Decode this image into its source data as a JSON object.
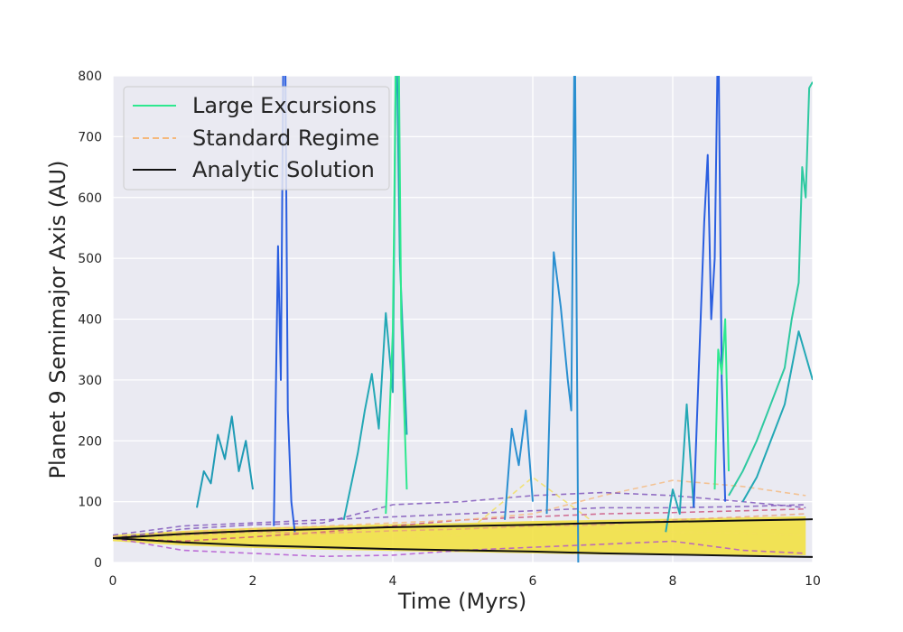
{
  "chart_data": {
    "type": "line",
    "xlabel": "Time (Myrs)",
    "ylabel": "Planet 9 Semimajor Axis (AU)",
    "xlim": [
      0,
      10
    ],
    "ylim": [
      0,
      800
    ],
    "xticks": [
      0,
      2,
      4,
      6,
      8,
      10
    ],
    "yticks": [
      0,
      100,
      200,
      300,
      400,
      500,
      600,
      700,
      800
    ],
    "xtick_labels": [
      "0",
      "2",
      "4",
      "6",
      "8",
      "10"
    ],
    "ytick_labels": [
      "0",
      "100",
      "200",
      "300",
      "400",
      "500",
      "600",
      "700",
      "800"
    ],
    "grid": true,
    "background": "#eaeaf2",
    "legend": {
      "placement": "top-left",
      "entries": [
        {
          "label": "Large Excursions",
          "color": "#2ee88f",
          "style": "solid"
        },
        {
          "label": "Standard Regime",
          "color": "#f5b87c",
          "style": "dashed"
        },
        {
          "label": "Analytic Solution",
          "color": "#111111",
          "style": "solid"
        }
      ]
    },
    "series": [
      {
        "name": "Large Excursions",
        "style": "solid",
        "color": "#2ee88f",
        "paths": [
          {
            "color": "#1f9bb5",
            "x": [
              1.2,
              1.3,
              1.4,
              1.5,
              1.6,
              1.7,
              1.8,
              1.9,
              2.0
            ],
            "y": [
              90,
              150,
              130,
              210,
              170,
              240,
              150,
              200,
              120
            ]
          },
          {
            "color": "#2a5ee0",
            "x": [
              2.3,
              2.36,
              2.4,
              2.44,
              2.46,
              2.5,
              2.55,
              2.6
            ],
            "y": [
              60,
              520,
              300,
              900,
              900,
              250,
              100,
              50
            ]
          },
          {
            "color": "#23a8b5",
            "x": [
              3.3,
              3.5,
              3.6,
              3.7,
              3.8,
              3.9,
              4.0,
              4.05,
              4.1,
              4.2
            ],
            "y": [
              70,
              180,
              250,
              310,
              220,
              410,
              280,
              900,
              500,
              210
            ]
          },
          {
            "color": "#2ee88f",
            "x": [
              3.9,
              4.0,
              4.05,
              4.08,
              4.12,
              4.2
            ],
            "y": [
              80,
              380,
              900,
              900,
              400,
              120
            ]
          },
          {
            "color": "#2a8fd0",
            "x": [
              5.6,
              5.7,
              5.8,
              5.9,
              6.0
            ],
            "y": [
              70,
              220,
              160,
              250,
              100
            ]
          },
          {
            "color": "#2a8fd0",
            "x": [
              6.2,
              6.3,
              6.4,
              6.5,
              6.55,
              6.6,
              6.65
            ],
            "y": [
              80,
              510,
              420,
              300,
              250,
              900,
              0
            ]
          },
          {
            "color": "#23a8b5",
            "x": [
              7.9,
              8.0,
              8.1,
              8.2,
              8.3
            ],
            "y": [
              50,
              120,
              80,
              260,
              90
            ]
          },
          {
            "color": "#2a5ee0",
            "x": [
              8.3,
              8.45,
              8.5,
              8.55,
              8.6,
              8.65,
              8.7,
              8.75
            ],
            "y": [
              90,
              560,
              670,
              400,
              500,
              900,
              300,
              100
            ]
          },
          {
            "color": "#2ee88f",
            "x": [
              8.6,
              8.65,
              8.7,
              8.75,
              8.8
            ],
            "y": [
              120,
              350,
              310,
              400,
              150
            ]
          },
          {
            "color": "#2ec9a0",
            "x": [
              8.8,
              9.0,
              9.2,
              9.4,
              9.6,
              9.7,
              9.8,
              9.85,
              9.9,
              9.95,
              10.0
            ],
            "y": [
              110,
              150,
              200,
              260,
              320,
              400,
              460,
              650,
              600,
              780,
              790
            ]
          },
          {
            "color": "#23a8b5",
            "x": [
              9.0,
              9.2,
              9.4,
              9.6,
              9.8,
              10.0
            ],
            "y": [
              100,
              140,
              200,
              260,
              380,
              300
            ]
          }
        ]
      },
      {
        "name": "Standard Regime",
        "style": "dashed",
        "color": "#f5b87c",
        "paths": [
          {
            "color": "#7b4fb8",
            "x": [
              0,
              1,
              2,
              3,
              4,
              5,
              6,
              7,
              8,
              9,
              9.9
            ],
            "y": [
              45,
              60,
              65,
              70,
              75,
              80,
              85,
              90,
              90,
              92,
              95
            ]
          },
          {
            "color": "#c94f7c",
            "x": [
              0,
              1,
              2,
              3,
              4,
              5,
              6,
              7,
              8,
              9,
              9.9
            ],
            "y": [
              40,
              35,
              42,
              50,
              60,
              70,
              75,
              80,
              82,
              85,
              88
            ]
          },
          {
            "color": "#f5b87c",
            "x": [
              0,
              1,
              2,
              3,
              4,
              5,
              6,
              7,
              8,
              9,
              9.9
            ],
            "y": [
              42,
              50,
              55,
              60,
              65,
              70,
              80,
              110,
              135,
              125,
              110
            ]
          },
          {
            "color": "#7b4fb8",
            "x": [
              0,
              1,
              2,
              3,
              4,
              5,
              6,
              7,
              8,
              9,
              9.9
            ],
            "y": [
              40,
              55,
              62,
              65,
              95,
              100,
              110,
              115,
              110,
              100,
              90
            ]
          },
          {
            "color": "#f2e05a",
            "x": [
              0,
              1,
              2,
              3,
              4,
              5,
              6,
              7,
              8,
              9,
              9.9
            ],
            "y": [
              38,
              30,
              28,
              35,
              40,
              45,
              140,
              55,
              50,
              48,
              45
            ]
          },
          {
            "color": "#b04fd0",
            "x": [
              0,
              1,
              2,
              3,
              4,
              5,
              6,
              7,
              8,
              9,
              9.9
            ],
            "y": [
              40,
              20,
              15,
              10,
              12,
              20,
              25,
              30,
              35,
              20,
              15
            ]
          },
          {
            "color": "#e8a07c",
            "x": [
              0,
              1,
              2,
              3,
              4,
              5,
              6,
              7,
              8,
              9,
              9.9
            ],
            "y": [
              41,
              45,
              50,
              48,
              52,
              55,
              60,
              62,
              70,
              75,
              80
            ]
          }
        ]
      },
      {
        "name": "Analytic Solution",
        "style": "solid",
        "color": "#111111",
        "paths": [
          {
            "color": "#111111",
            "x": [
              0,
              1,
              2,
              3,
              4,
              5,
              6,
              7,
              8,
              9,
              10
            ],
            "y": [
              40,
              47,
              52,
              55,
              58,
              60,
              62,
              65,
              67,
              69,
              71
            ]
          },
          {
            "color": "#111111",
            "x": [
              0,
              1,
              2,
              3,
              4,
              5,
              6,
              7,
              8,
              9,
              10
            ],
            "y": [
              40,
              33,
              28,
              25,
              22,
              20,
              18,
              15,
              13,
              11,
              9
            ]
          }
        ]
      }
    ],
    "band": {
      "color": "#f2e03a",
      "x": [
        0,
        1,
        2,
        3,
        4,
        5,
        6,
        7,
        8,
        9,
        9.9
      ],
      "upper": [
        45,
        52,
        57,
        60,
        63,
        65,
        68,
        70,
        72,
        74,
        76
      ],
      "lower": [
        35,
        28,
        24,
        21,
        19,
        17,
        15,
        13,
        12,
        12,
        12
      ]
    }
  }
}
